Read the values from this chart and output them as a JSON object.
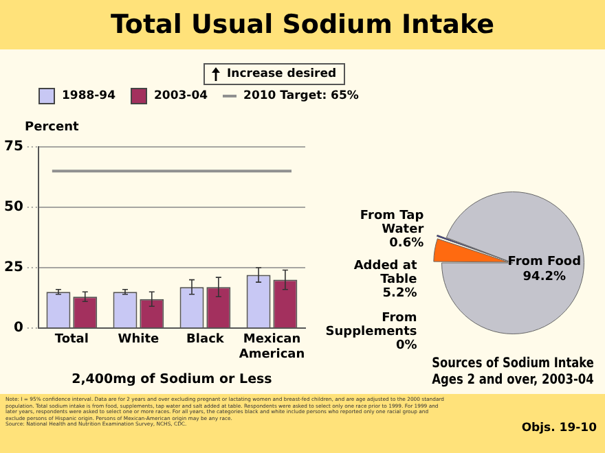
{
  "chart_data": [
    {
      "type": "bar",
      "title": "Total Usual Sodium Intake",
      "ylabel": "Percent",
      "xlabel": "2,400mg of Sodium or Less",
      "categories": [
        "Total",
        "White",
        "Black",
        "Mexican American"
      ],
      "series": [
        {
          "name": "1988-94",
          "color": "#c8c8f4",
          "values": [
            15,
            15,
            17,
            22
          ],
          "errors": [
            1,
            1,
            3,
            3
          ]
        },
        {
          "name": "2003-04",
          "color": "#a3305e",
          "values": [
            13,
            12,
            17,
            20
          ],
          "errors": [
            2,
            3,
            4,
            4
          ]
        }
      ],
      "ylim": [
        0,
        75
      ],
      "yticks": [
        0,
        25,
        50,
        75
      ],
      "grid": "y",
      "legend": "top",
      "ref_lines": [
        {
          "axis": "y",
          "value": 65,
          "label": "2010 Target: 65%",
          "color": "#909090"
        }
      ],
      "annotations": [
        "Increase desired",
        "Note: I = 95% confidence interval. Data are for 2 years and over excluding pregnant or lactating women and breast-fed children, and are age adjusted to the 2000 standard population. Total sodium intake is from food, supplements, tap water and salt added at table. Respondents were asked to select only one race prior to 1999. For 1999 and later years, respondents were asked to select one or more races. For all years, the categories black and white include persons who reported only one racial group and exclude persons of Hispanic origin. Persons of Mexican-American origin may be any race.",
        "Source: National Health and Nutrition Examination Survey, NCHS, CDC.",
        "Objs. 19-10"
      ]
    },
    {
      "type": "pie",
      "title": "Sources of Sodium Intake\nAges 2 and over, 2003-04",
      "categories": [
        "From Supplements",
        "Added at Table",
        "From Tap Water",
        "From Food"
      ],
      "values": [
        0,
        5.2,
        0.6,
        94.2
      ],
      "value_labels": [
        "0%",
        "5.2%",
        "0.6%",
        "94.2%"
      ],
      "colors": [
        "#c8c8c8",
        "#ff6a10",
        "#2a2a90",
        "#c4c4cc"
      ]
    }
  ]
}
